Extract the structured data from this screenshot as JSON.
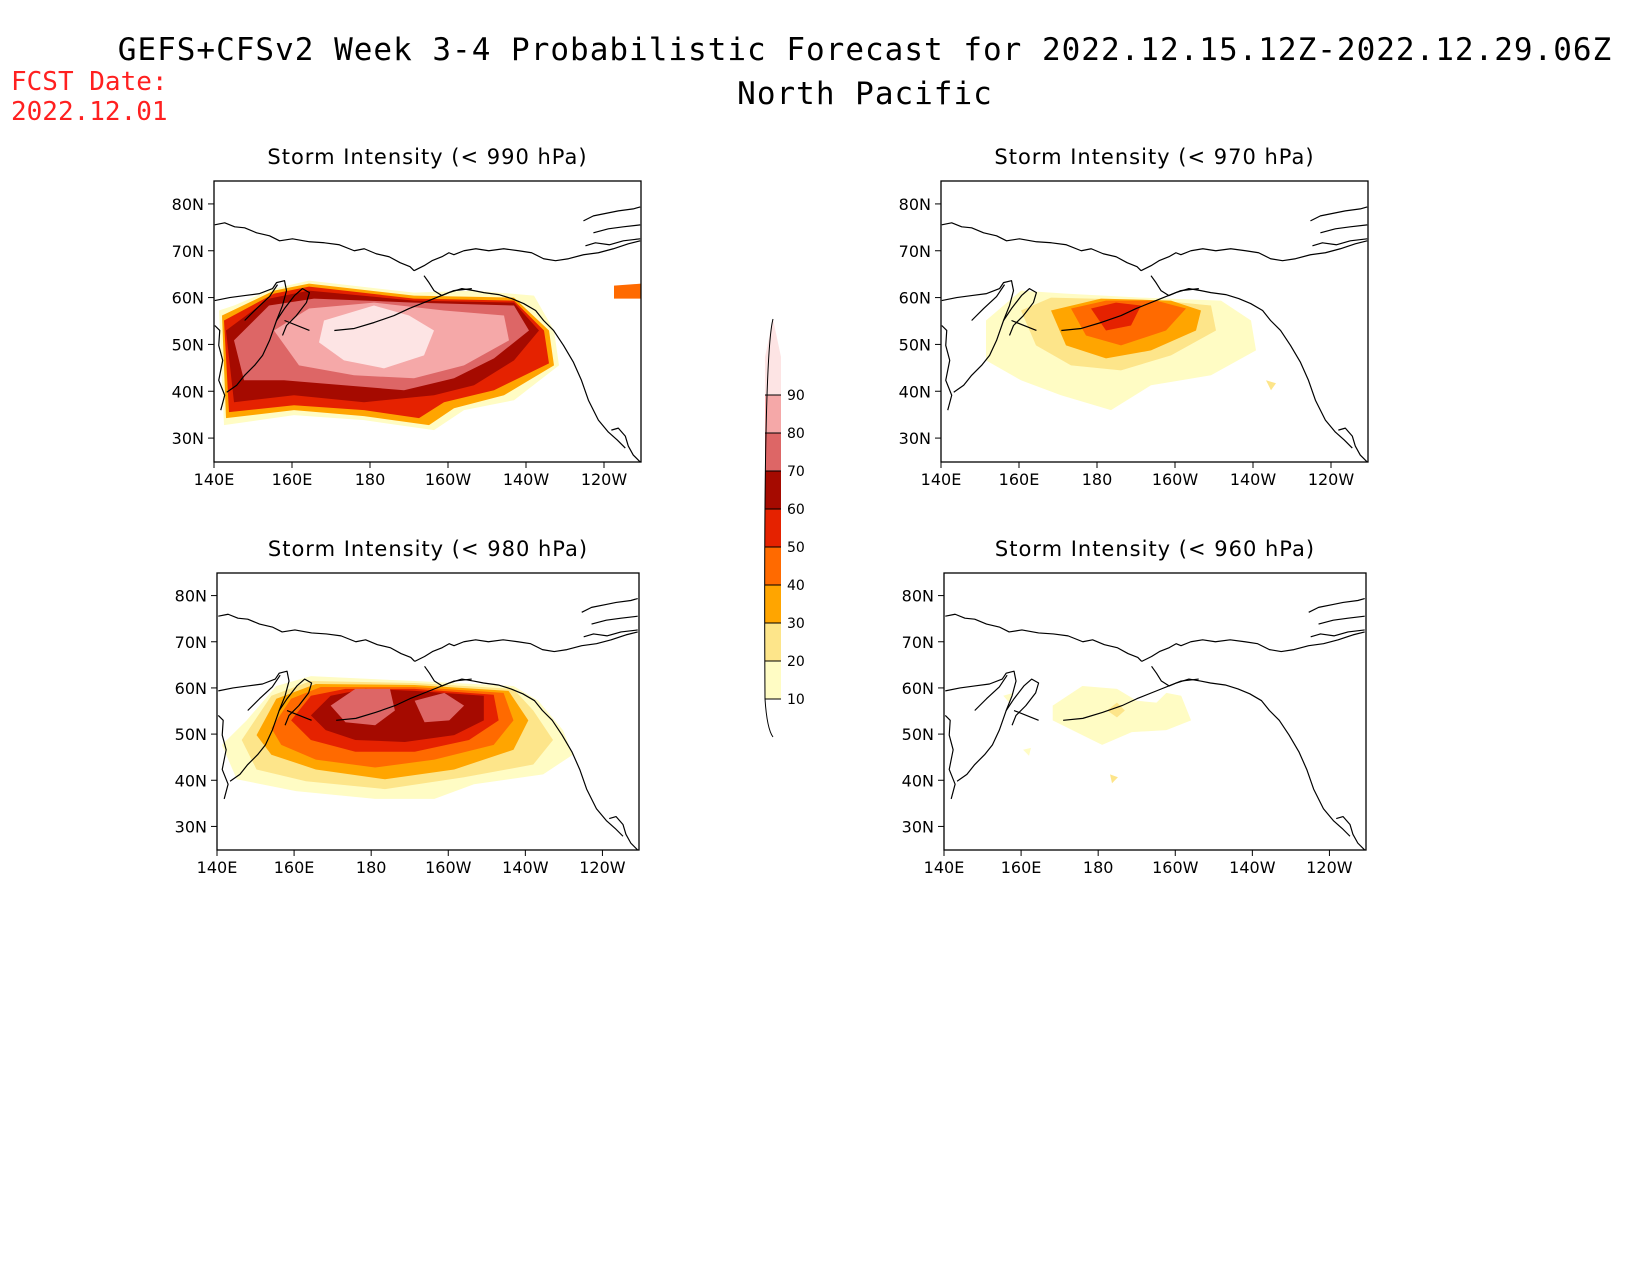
{
  "header": {
    "title": "GEFS+CFSv2 Week 3-4 Probabilistic Forecast for 2022.12.15.12Z-2022.12.29.06Z",
    "subtitle": "North Pacific",
    "fcst_label": "FCST Date:",
    "fcst_date": "2022.12.01"
  },
  "axes": {
    "lat_labels": [
      "80N",
      "70N",
      "60N",
      "50N",
      "40N",
      "30N"
    ],
    "lon_labels": [
      "140E",
      "160E",
      "180",
      "160W",
      "140W",
      "120W"
    ]
  },
  "colorbar": {
    "levels": [
      "10",
      "20",
      "30",
      "40",
      "50",
      "60",
      "70",
      "80",
      "90"
    ],
    "colors": [
      "#fffcc4",
      "#fde58a",
      "#ffa500",
      "#ff6a00",
      "#e52200",
      "#a50a00",
      "#dd6666",
      "#f5a8a8",
      "#fde4e4"
    ]
  },
  "panels": [
    {
      "title": "Storm Intensity (< 990 hPa)"
    },
    {
      "title": "Storm Intensity (< 970 hPa)"
    },
    {
      "title": "Storm Intensity (< 980 hPa)"
    },
    {
      "title": "Storm Intensity (< 960 hPa)"
    }
  ],
  "field_colors": {
    "c10": "#fffcc4",
    "c20": "#fde58a",
    "c30": "#ffa500",
    "c40": "#ff6a00",
    "c50": "#e52200",
    "c60": "#a50a00",
    "c70": "#dd6666",
    "c80": "#f5a8a8",
    "c90": "#fde4e4"
  }
}
